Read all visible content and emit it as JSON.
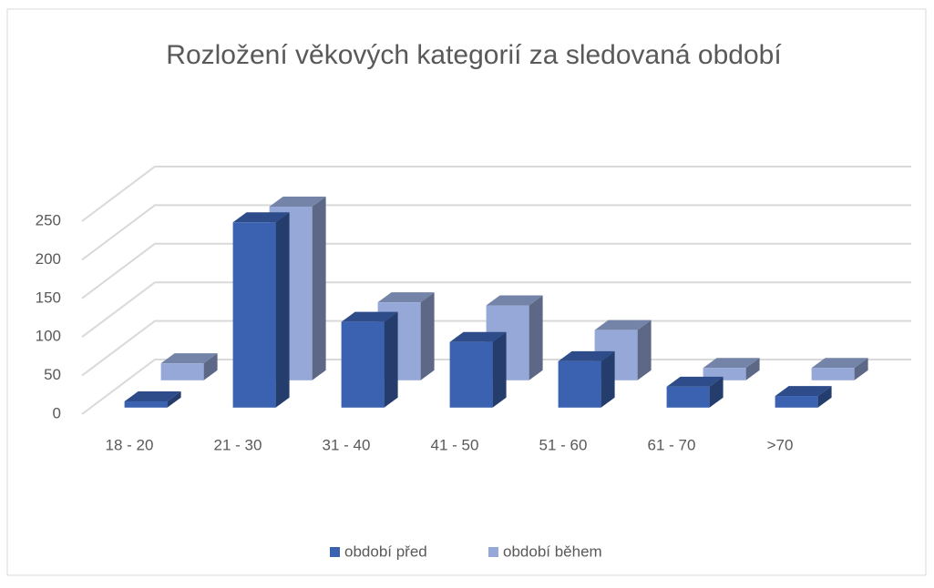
{
  "chart_data": {
    "type": "bar3d",
    "title": "Rozložení věkových kategorií za sledovaná období",
    "categories": [
      "18 - 20",
      "21 - 30",
      "31 - 40",
      "41 - 50",
      "51 - 60",
      "61 - 70",
      ">70"
    ],
    "series": [
      {
        "name": "období před",
        "color": "#3a62b0",
        "values": [
          8,
          240,
          111,
          85,
          60,
          27,
          15
        ]
      },
      {
        "name": "období během",
        "color": "#95a8d8",
        "values": [
          22,
          225,
          101,
          97,
          65,
          16,
          16
        ]
      }
    ],
    "ylim": [
      0,
      250
    ],
    "yticks": [
      0,
      50,
      100,
      150,
      200,
      250
    ],
    "grid": true,
    "legend": "bottom"
  }
}
